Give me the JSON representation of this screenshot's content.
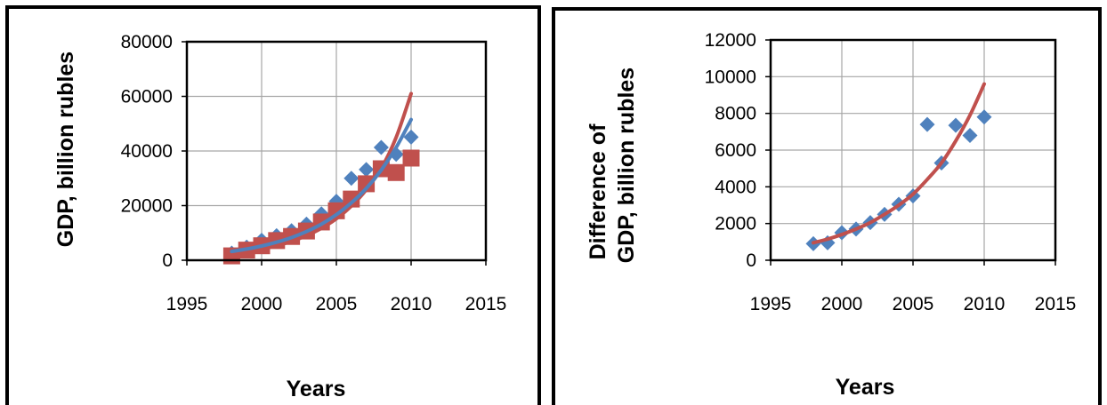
{
  "colors": {
    "blue": "#4F81BD",
    "red": "#C0504D",
    "trend_red": "#C0504D",
    "trend_blue": "#4F81BD",
    "grid": "#A6A6A6",
    "frame": "#000000"
  },
  "chart_data": [
    {
      "type": "scatter",
      "title": "",
      "xlabel": "Years",
      "ylabel": "GDP, billion rubles",
      "xlim": [
        1995,
        2015
      ],
      "ylim": [
        0,
        80000
      ],
      "xticks": [
        1995,
        2000,
        2005,
        2010,
        2015
      ],
      "yticks": [
        0,
        20000,
        40000,
        60000,
        80000
      ],
      "xtick_labels": [
        "1995",
        "2000",
        "2005",
        "2010",
        "2015"
      ],
      "ytick_labels": [
        "0",
        "20000",
        "40000",
        "60000",
        "80000"
      ],
      "grid": true,
      "legend": "none",
      "series": [
        {
          "marker": "diamond",
          "color": "blue",
          "x": [
            1998,
            1999,
            2000,
            2001,
            2002,
            2003,
            2004,
            2005,
            2006,
            2007,
            2008,
            2009,
            2010
          ],
          "y": [
            2600,
            4800,
            7300,
            9000,
            10800,
            13200,
            17000,
            21600,
            30000,
            33200,
            41300,
            38800,
            45100
          ]
        },
        {
          "marker": "square",
          "color": "red",
          "x": [
            1998,
            1999,
            2000,
            2001,
            2002,
            2003,
            2004,
            2005,
            2006,
            2007,
            2008,
            2009,
            2010
          ],
          "y": [
            1600,
            3700,
            5300,
            7200,
            8700,
            10700,
            14000,
            18100,
            22400,
            28000,
            33500,
            32100,
            37400
          ]
        },
        {
          "kind": "trendline",
          "color": "trend_red",
          "x": [
            1998,
            1999,
            2000,
            2001,
            2002,
            2003,
            2004,
            2005,
            2006,
            2007,
            2008,
            2009,
            2010
          ],
          "y": [
            2400,
            3100,
            4100,
            5300,
            6900,
            9000,
            11700,
            15200,
            19800,
            25800,
            33600,
            45000,
            61000
          ]
        },
        {
          "kind": "trendline",
          "color": "trend_blue",
          "x": [
            1998,
            1999,
            2000,
            2001,
            2002,
            2003,
            2004,
            2005,
            2006,
            2007,
            2008,
            2009,
            2010
          ],
          "y": [
            3200,
            4100,
            5200,
            6600,
            8300,
            10500,
            13200,
            16700,
            21000,
            26300,
            33000,
            41300,
            51500
          ]
        }
      ]
    },
    {
      "type": "scatter",
      "title": "",
      "xlabel": "Years",
      "ylabel": "Difference of GDP, billion rubles",
      "ylabel_lines": [
        "Difference of",
        "GDP, billion rubles"
      ],
      "xlim": [
        1995,
        2015
      ],
      "ylim": [
        0,
        12000
      ],
      "xticks": [
        1995,
        2000,
        2005,
        2010,
        2015
      ],
      "yticks": [
        0,
        2000,
        4000,
        6000,
        8000,
        10000,
        12000
      ],
      "xtick_labels": [
        "1995",
        "2000",
        "2005",
        "2010",
        "2015"
      ],
      "ytick_labels": [
        "0",
        "2000",
        "4000",
        "6000",
        "8000",
        "10000",
        "12000"
      ],
      "grid": true,
      "legend": "none",
      "series": [
        {
          "marker": "diamond",
          "color": "blue",
          "x": [
            1998,
            1999,
            2000,
            2001,
            2002,
            2003,
            2004,
            2005,
            2006,
            2007,
            2008,
            2009,
            2010
          ],
          "y": [
            900,
            950,
            1500,
            1700,
            2050,
            2500,
            3050,
            3500,
            7400,
            5300,
            7350,
            6800,
            7800
          ]
        },
        {
          "kind": "trendline",
          "color": "trend_red",
          "x": [
            1998,
            1999,
            2000,
            2001,
            2002,
            2003,
            2004,
            2005,
            2006,
            2007,
            2008,
            2009,
            2010
          ],
          "y": [
            950,
            1150,
            1400,
            1700,
            2050,
            2500,
            3000,
            3600,
            4400,
            5300,
            6500,
            7900,
            9600
          ]
        }
      ]
    }
  ]
}
